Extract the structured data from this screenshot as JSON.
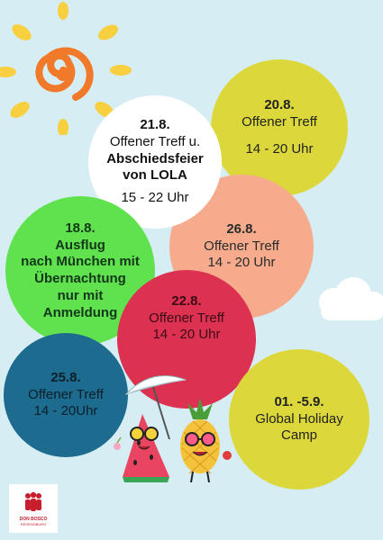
{
  "events": [
    {
      "id": "20.8",
      "date": "20.8.",
      "line1": "Offener Treff",
      "time": "14 - 20 Uhr"
    },
    {
      "id": "21.8",
      "date": "21.8.",
      "line1": "Offener Treff u.",
      "line2": "Abschiedsfeier",
      "line3": "von LOLA",
      "time": "15 - 22 Uhr"
    },
    {
      "id": "26.8",
      "date": "26.8.",
      "line1": "Offener Treff",
      "time": "14 - 20 Uhr"
    },
    {
      "id": "18.8",
      "date": "18.8.",
      "line1": "Ausflug",
      "line2": "nach München mit",
      "line3": "Übernachtung",
      "line4": "nur mit",
      "line5": "Anmeldung"
    },
    {
      "id": "22.8",
      "date": "22.8.",
      "line1": "Offener Treff",
      "time": "14 - 20 Uhr"
    },
    {
      "id": "25.8",
      "date": "25.8.",
      "line1": "Offener Treff",
      "time": "14 - 20Uhr"
    },
    {
      "id": "01-5.9",
      "date": "01. -5.9.",
      "line1": "Global Holiday",
      "line2": "Camp"
    }
  ],
  "logo": {
    "name": "DON BOSCO",
    "city": "REGENSBURG"
  },
  "colors": {
    "background": "#d6eef3",
    "yellow": "#dcd83b",
    "white": "#ffffff",
    "peach": "#f5ab8c",
    "green": "#5fe24e",
    "red": "#dc3150",
    "blue": "#1d6b8e",
    "sun_orange": "#f07a2a",
    "sun_rays": "#f7cf3f"
  },
  "icons": [
    "sun-icon",
    "cloud-icon",
    "watermelon-mascot",
    "pineapple-mascot",
    "beach-umbrella-icon",
    "don-bosco-logo"
  ]
}
